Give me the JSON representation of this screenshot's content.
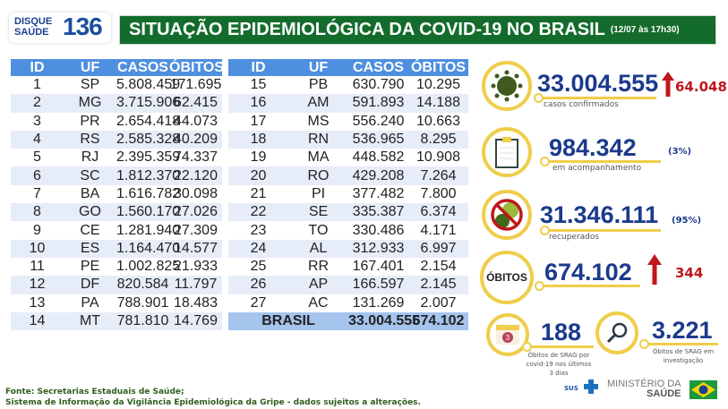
{
  "logo": {
    "line1": "DISQUE",
    "line2": "SAÚDE",
    "number": "136"
  },
  "header": {
    "title": "SITUAÇÃO EPIDEMIOLÓGICA DA COVID-19 NO BRASIL",
    "date": "(12/07 às 17h30)"
  },
  "table": {
    "columns": [
      "ID",
      "UF",
      "CASOS",
      "ÓBITOS"
    ],
    "rows_left": [
      [
        "1",
        "SP",
        "5.808.459",
        "171.695"
      ],
      [
        "2",
        "MG",
        "3.715.906",
        "62.415"
      ],
      [
        "3",
        "PR",
        "2.654.418",
        "44.073"
      ],
      [
        "4",
        "RS",
        "2.585.328",
        "40.209"
      ],
      [
        "5",
        "RJ",
        "2.395.359",
        "74.337"
      ],
      [
        "6",
        "SC",
        "1.812.370",
        "22.120"
      ],
      [
        "7",
        "BA",
        "1.616.782",
        "30.098"
      ],
      [
        "8",
        "GO",
        "1.560.170",
        "27.026"
      ],
      [
        "9",
        "CE",
        "1.281.940",
        "27.309"
      ],
      [
        "10",
        "ES",
        "1.164.470",
        "14.577"
      ],
      [
        "11",
        "PE",
        "1.002.825",
        "21.933"
      ],
      [
        "12",
        "DF",
        "820.584",
        "11.797"
      ],
      [
        "13",
        "PA",
        "788.901",
        "18.483"
      ],
      [
        "14",
        "MT",
        "781.810",
        "14.769"
      ]
    ],
    "rows_right": [
      [
        "15",
        "PB",
        "630.790",
        "10.295"
      ],
      [
        "16",
        "AM",
        "591.893",
        "14.188"
      ],
      [
        "17",
        "MS",
        "556.240",
        "10.663"
      ],
      [
        "18",
        "RN",
        "536.965",
        "8.295"
      ],
      [
        "19",
        "MA",
        "448.582",
        "10.908"
      ],
      [
        "20",
        "RO",
        "429.208",
        "7.264"
      ],
      [
        "21",
        "PI",
        "377.482",
        "7.800"
      ],
      [
        "22",
        "SE",
        "335.387",
        "6.374"
      ],
      [
        "23",
        "TO",
        "330.486",
        "4.171"
      ],
      [
        "24",
        "AL",
        "312.933",
        "6.997"
      ],
      [
        "25",
        "RR",
        "167.401",
        "2.154"
      ],
      [
        "26",
        "AP",
        "166.597",
        "2.145"
      ],
      [
        "27",
        "AC",
        "131.269",
        "2.007"
      ]
    ],
    "total": {
      "label": "BRASIL",
      "casos": "33.004.555",
      "obitos": "674.102"
    }
  },
  "stats": {
    "confirmed": {
      "value": "33.004.555",
      "caption": "casos confirmados",
      "increase": "64.048",
      "icon": "virus-icon"
    },
    "monitoring": {
      "value": "984.342",
      "caption": "em acompanhamento",
      "pct": "(3%)",
      "icon": "clipboard-icon"
    },
    "recovered": {
      "value": "31.346.111",
      "caption": "recuperados",
      "pct": "(95%)",
      "icon": "no-virus-icon"
    },
    "deaths": {
      "label": "ÓBITOS",
      "value": "674.102",
      "increase": "344"
    },
    "srag_3days": {
      "value": "188",
      "caption": "Óbitos de SRAG por covid-19 nos últimos 3 dias",
      "icon_text": "3",
      "icon": "calendar-icon"
    },
    "srag_investigation": {
      "value": "3.221",
      "caption": "Óbitos de SRAG em investigação",
      "icon": "magnifier-icon"
    }
  },
  "branding": {
    "sus": "SUS",
    "ministry_line1": "MINISTÉRIO DA",
    "ministry_line2": "SAÚDE"
  },
  "footer": {
    "line1": "Fonte: Secretarias Estaduais de Saúde;",
    "line2": "Sistema de Informação da Vigilância Epidemiológica da Gripe - dados sujeitos a alterações."
  },
  "colors": {
    "title_green": "#146c2c",
    "table_header": "#4f8fdf",
    "accent_yellow": "#f0cd4a",
    "number_blue": "#1b3a8c",
    "increase_red": "#c0161c"
  }
}
